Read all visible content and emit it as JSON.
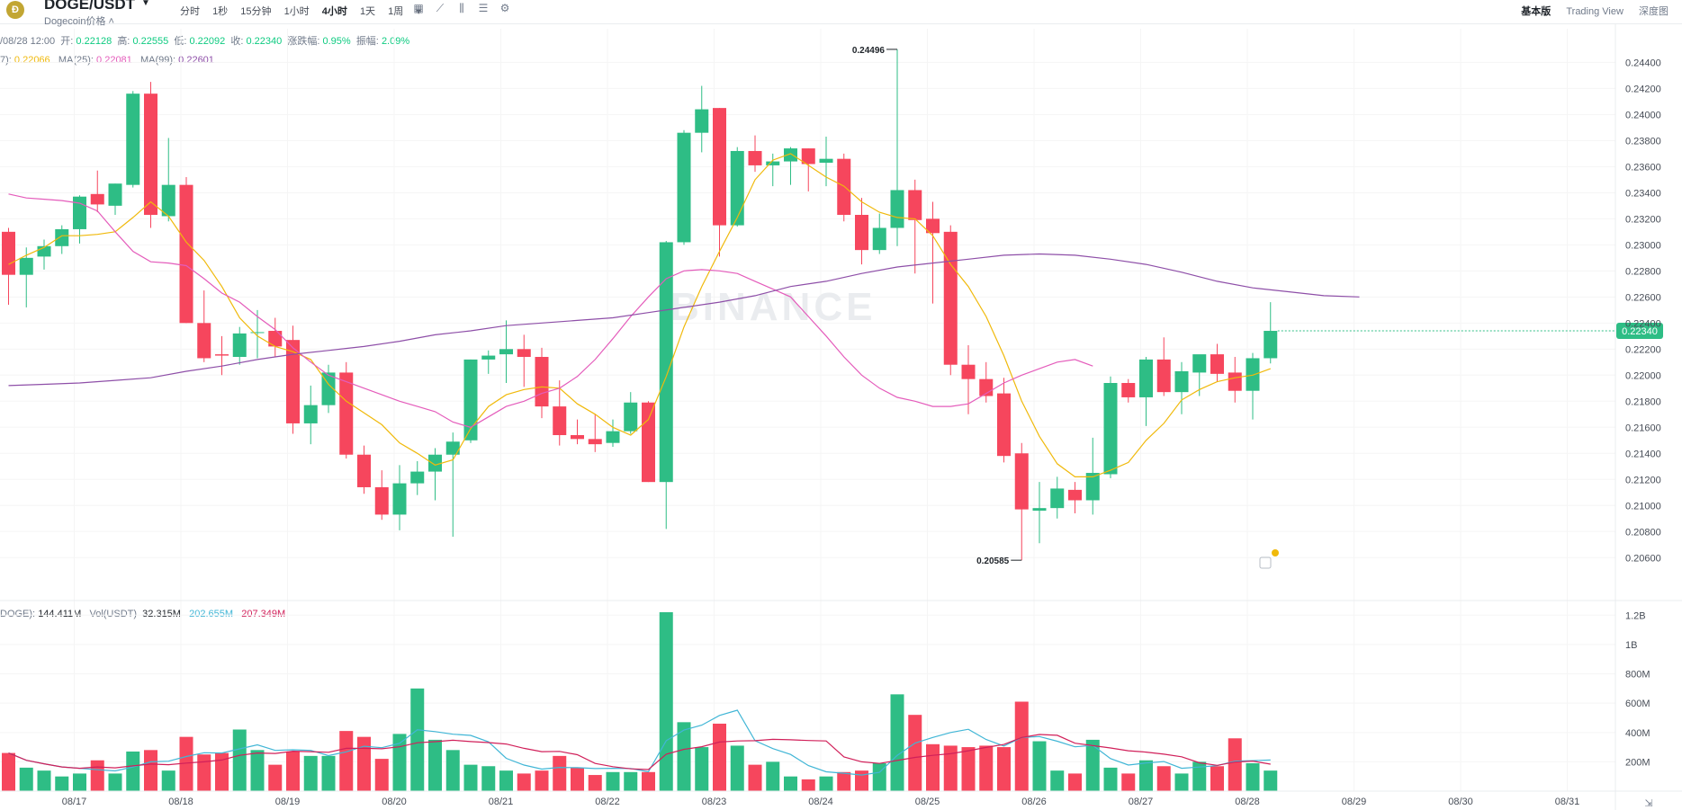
{
  "header": {
    "logo_text": "Ð",
    "pair": "DOGE/USDT",
    "subname": "Dogecoin价格 ˄",
    "intervals": [
      "分时",
      "1秒",
      "15分钟",
      "1小时",
      "4小时",
      "1天",
      "1周"
    ],
    "active_interval": "4小时",
    "views": [
      "基本版",
      "Trading View",
      "深度图"
    ],
    "active_view": "基本版"
  },
  "ohlc_legend": {
    "time": "/08/28 12:00",
    "open_label": "开:",
    "open": "0.22128",
    "high_label": "高:",
    "high": "0.22555",
    "low_label": "低:",
    "low": "0.22092",
    "close_label": "收:",
    "close": "0.22340",
    "change_label": "涨跌幅:",
    "change": "0.95%",
    "amp_label": "振幅:",
    "amp": "2.09%"
  },
  "ma_legend": {
    "ma7_label": "7):",
    "ma7": "0.22066",
    "ma25_label": "MA(25):",
    "ma25": "0.22081",
    "ma99_label": "MA(99):",
    "ma99": "0.22601"
  },
  "vol_legend": {
    "doge_label": "DOGE):",
    "doge": "144.411M",
    "usdt_label": "Vol(USDT)",
    "usdt": "32.315M",
    "ma1": "202.655M",
    "ma2": "207.349M"
  },
  "colors": {
    "up": "#2ebd85",
    "down": "#f6465d",
    "ma7": "#f0b90b",
    "ma25": "#e45cbb",
    "ma99": "#8e4fa8",
    "vol_ma1": "#41b6d6",
    "vol_ma2": "#d1205a",
    "last_price_bg": "#2ebd85"
  },
  "watermark": "BINANCE",
  "chart_data": {
    "type": "candlestick",
    "interval": "4h",
    "price_axis": {
      "ticks": [
        "0.24400",
        "0.24200",
        "0.24000",
        "0.23800",
        "0.23600",
        "0.23400",
        "0.23200",
        "0.23000",
        "0.22800",
        "0.22600",
        "0.22400",
        "0.22200",
        "0.22000",
        "0.21800",
        "0.21600",
        "0.21400",
        "0.21200",
        "0.21000",
        "0.20800",
        "0.20600"
      ],
      "range": [
        0.2045,
        0.2452
      ]
    },
    "volume_axis": {
      "ticks": [
        "1.2B",
        "1B",
        "800M",
        "600M",
        "400M",
        "200M"
      ],
      "range": [
        0,
        1220
      ]
    },
    "x_ticks": [
      "08/17",
      "08/18",
      "08/19",
      "08/20",
      "08/21",
      "08/22",
      "08/23",
      "08/24",
      "08/25",
      "08/26",
      "08/27",
      "08/28",
      "08/29",
      "08/30",
      "08/31"
    ],
    "last_price": "0.22340",
    "max_label": "0.24496",
    "min_label": "0.20585",
    "candles": [
      {
        "o": 0.231,
        "h": 0.2313,
        "l": 0.2254,
        "c": 0.2277,
        "v": 260
      },
      {
        "o": 0.2277,
        "h": 0.2298,
        "l": 0.2252,
        "c": 0.229,
        "v": 160
      },
      {
        "o": 0.2291,
        "h": 0.2304,
        "l": 0.2281,
        "c": 0.2299,
        "v": 140
      },
      {
        "o": 0.2299,
        "h": 0.2315,
        "l": 0.2293,
        "c": 0.2312,
        "v": 100
      },
      {
        "o": 0.2312,
        "h": 0.2338,
        "l": 0.2301,
        "c": 0.2337,
        "v": 120
      },
      {
        "o": 0.2339,
        "h": 0.2357,
        "l": 0.2325,
        "c": 0.2331,
        "v": 210
      },
      {
        "o": 0.233,
        "h": 0.2347,
        "l": 0.2323,
        "c": 0.2347,
        "v": 120
      },
      {
        "o": 0.2346,
        "h": 0.2418,
        "l": 0.2344,
        "c": 0.2416,
        "v": 270
      },
      {
        "o": 0.2416,
        "h": 0.2425,
        "l": 0.2313,
        "c": 0.2323,
        "v": 280
      },
      {
        "o": 0.2322,
        "h": 0.2382,
        "l": 0.2318,
        "c": 0.2346,
        "v": 140
      },
      {
        "o": 0.2346,
        "h": 0.2352,
        "l": 0.224,
        "c": 0.224,
        "v": 370
      },
      {
        "o": 0.224,
        "h": 0.2265,
        "l": 0.221,
        "c": 0.2213,
        "v": 250
      },
      {
        "o": 0.2216,
        "h": 0.223,
        "l": 0.22,
        "c": 0.2215,
        "v": 260
      },
      {
        "o": 0.2214,
        "h": 0.2237,
        "l": 0.2208,
        "c": 0.2232,
        "v": 420
      },
      {
        "o": 0.2233,
        "h": 0.225,
        "l": 0.2213,
        "c": 0.2233,
        "v": 280
      },
      {
        "o": 0.2234,
        "h": 0.2244,
        "l": 0.2214,
        "c": 0.2222,
        "v": 180
      },
      {
        "o": 0.2227,
        "h": 0.2238,
        "l": 0.2155,
        "c": 0.2163,
        "v": 270
      },
      {
        "o": 0.2163,
        "h": 0.2192,
        "l": 0.2147,
        "c": 0.2177,
        "v": 240
      },
      {
        "o": 0.2177,
        "h": 0.2208,
        "l": 0.2171,
        "c": 0.2202,
        "v": 240
      },
      {
        "o": 0.2202,
        "h": 0.221,
        "l": 0.2136,
        "c": 0.2139,
        "v": 410
      },
      {
        "o": 0.2139,
        "h": 0.2146,
        "l": 0.2109,
        "c": 0.2114,
        "v": 370
      },
      {
        "o": 0.2114,
        "h": 0.2127,
        "l": 0.2089,
        "c": 0.2093,
        "v": 220
      },
      {
        "o": 0.2093,
        "h": 0.2131,
        "l": 0.2081,
        "c": 0.2117,
        "v": 390
      },
      {
        "o": 0.2117,
        "h": 0.2134,
        "l": 0.2108,
        "c": 0.2126,
        "v": 700
      },
      {
        "o": 0.2126,
        "h": 0.2144,
        "l": 0.2104,
        "c": 0.2139,
        "v": 350
      },
      {
        "o": 0.2139,
        "h": 0.2156,
        "l": 0.2076,
        "c": 0.2149,
        "v": 280
      },
      {
        "o": 0.215,
        "h": 0.2212,
        "l": 0.2148,
        "c": 0.2212,
        "v": 180
      },
      {
        "o": 0.2212,
        "h": 0.2219,
        "l": 0.2201,
        "c": 0.2215,
        "v": 170
      },
      {
        "o": 0.2216,
        "h": 0.2242,
        "l": 0.2194,
        "c": 0.222,
        "v": 140
      },
      {
        "o": 0.222,
        "h": 0.2231,
        "l": 0.2191,
        "c": 0.2214,
        "v": 120
      },
      {
        "o": 0.2214,
        "h": 0.2221,
        "l": 0.2167,
        "c": 0.2176,
        "v": 140
      },
      {
        "o": 0.2176,
        "h": 0.2196,
        "l": 0.2146,
        "c": 0.2154,
        "v": 240
      },
      {
        "o": 0.2154,
        "h": 0.2166,
        "l": 0.2147,
        "c": 0.2151,
        "v": 160
      },
      {
        "o": 0.2151,
        "h": 0.217,
        "l": 0.2141,
        "c": 0.2147,
        "v": 110
      },
      {
        "o": 0.2148,
        "h": 0.2166,
        "l": 0.2145,
        "c": 0.2157,
        "v": 130
      },
      {
        "o": 0.2157,
        "h": 0.2187,
        "l": 0.2155,
        "c": 0.2179,
        "v": 130
      },
      {
        "o": 0.2179,
        "h": 0.218,
        "l": 0.2118,
        "c": 0.2118,
        "v": 130
      },
      {
        "o": 0.2118,
        "h": 0.2303,
        "l": 0.2082,
        "c": 0.2302,
        "v": 1220
      },
      {
        "o": 0.2302,
        "h": 0.2388,
        "l": 0.23,
        "c": 0.2386,
        "v": 470
      },
      {
        "o": 0.2386,
        "h": 0.2422,
        "l": 0.2371,
        "c": 0.2404,
        "v": 300
      },
      {
        "o": 0.2405,
        "h": 0.2405,
        "l": 0.2291,
        "c": 0.2315,
        "v": 460
      },
      {
        "o": 0.2315,
        "h": 0.2375,
        "l": 0.2314,
        "c": 0.2372,
        "v": 310
      },
      {
        "o": 0.2372,
        "h": 0.2384,
        "l": 0.2356,
        "c": 0.2361,
        "v": 180
      },
      {
        "o": 0.2361,
        "h": 0.237,
        "l": 0.2345,
        "c": 0.2364,
        "v": 200
      },
      {
        "o": 0.2364,
        "h": 0.2375,
        "l": 0.2346,
        "c": 0.2374,
        "v": 100
      },
      {
        "o": 0.2374,
        "h": 0.2374,
        "l": 0.2341,
        "c": 0.2362,
        "v": 80
      },
      {
        "o": 0.2363,
        "h": 0.2383,
        "l": 0.2345,
        "c": 0.2366,
        "v": 100
      },
      {
        "o": 0.2366,
        "h": 0.237,
        "l": 0.2318,
        "c": 0.2323,
        "v": 130
      },
      {
        "o": 0.2323,
        "h": 0.2336,
        "l": 0.2285,
        "c": 0.2296,
        "v": 140
      },
      {
        "o": 0.2296,
        "h": 0.2324,
        "l": 0.2293,
        "c": 0.2313,
        "v": 190
      },
      {
        "o": 0.2313,
        "h": 0.245,
        "l": 0.2299,
        "c": 0.2342,
        "v": 660
      },
      {
        "o": 0.2342,
        "h": 0.235,
        "l": 0.2278,
        "c": 0.2319,
        "v": 520
      },
      {
        "o": 0.232,
        "h": 0.2333,
        "l": 0.2255,
        "c": 0.2309,
        "v": 320
      },
      {
        "o": 0.231,
        "h": 0.2315,
        "l": 0.22,
        "c": 0.2208,
        "v": 310
      },
      {
        "o": 0.2208,
        "h": 0.2223,
        "l": 0.217,
        "c": 0.2197,
        "v": 300
      },
      {
        "o": 0.2197,
        "h": 0.221,
        "l": 0.2179,
        "c": 0.2184,
        "v": 310
      },
      {
        "o": 0.2186,
        "h": 0.2198,
        "l": 0.2133,
        "c": 0.2138,
        "v": 300
      },
      {
        "o": 0.214,
        "h": 0.2148,
        "l": 0.2058,
        "c": 0.2097,
        "v": 610
      },
      {
        "o": 0.2096,
        "h": 0.2118,
        "l": 0.2071,
        "c": 0.2098,
        "v": 340
      },
      {
        "o": 0.2098,
        "h": 0.2122,
        "l": 0.209,
        "c": 0.2113,
        "v": 140
      },
      {
        "o": 0.2112,
        "h": 0.2118,
        "l": 0.2094,
        "c": 0.2104,
        "v": 120
      },
      {
        "o": 0.2104,
        "h": 0.2152,
        "l": 0.2093,
        "c": 0.2125,
        "v": 350
      },
      {
        "o": 0.2124,
        "h": 0.2199,
        "l": 0.2121,
        "c": 0.2194,
        "v": 160
      },
      {
        "o": 0.2194,
        "h": 0.2197,
        "l": 0.2179,
        "c": 0.2183,
        "v": 120
      },
      {
        "o": 0.2183,
        "h": 0.2214,
        "l": 0.2161,
        "c": 0.2212,
        "v": 210
      },
      {
        "o": 0.2212,
        "h": 0.2229,
        "l": 0.2184,
        "c": 0.2187,
        "v": 170
      },
      {
        "o": 0.2187,
        "h": 0.221,
        "l": 0.217,
        "c": 0.2203,
        "v": 120
      },
      {
        "o": 0.2202,
        "h": 0.2215,
        "l": 0.2184,
        "c": 0.2216,
        "v": 200
      },
      {
        "o": 0.2216,
        "h": 0.2224,
        "l": 0.2195,
        "c": 0.2201,
        "v": 170
      },
      {
        "o": 0.2202,
        "h": 0.2214,
        "l": 0.2179,
        "c": 0.2188,
        "v": 360
      },
      {
        "o": 0.2188,
        "h": 0.2217,
        "l": 0.2166,
        "c": 0.2213,
        "v": 190
      },
      {
        "o": 0.2213,
        "h": 0.2256,
        "l": 0.2209,
        "c": 0.2234,
        "v": 140
      }
    ],
    "ma7": [
      0.2285,
      0.2292,
      0.2298,
      0.2307,
      0.2307,
      0.2308,
      0.231,
      0.2321,
      0.2333,
      0.2322,
      0.2302,
      0.2288,
      0.2268,
      0.2244,
      0.223,
      0.2222,
      0.2218,
      0.2212,
      0.2193,
      0.218,
      0.2171,
      0.2162,
      0.2148,
      0.214,
      0.2131,
      0.2135,
      0.2159,
      0.2176,
      0.2185,
      0.2189,
      0.2191,
      0.219,
      0.2178,
      0.217,
      0.216,
      0.2154,
      0.2166,
      0.2199,
      0.2237,
      0.2268,
      0.2295,
      0.2321,
      0.235,
      0.2365,
      0.237,
      0.2361,
      0.2352,
      0.2345,
      0.2333,
      0.2325,
      0.2321,
      0.232,
      0.2307,
      0.2285,
      0.2268,
      0.2245,
      0.2215,
      0.218,
      0.2153,
      0.2132,
      0.2122,
      0.2122,
      0.2127,
      0.2133,
      0.215,
      0.2163,
      0.2181,
      0.2189,
      0.2195,
      0.2198,
      0.22,
      0.2205
    ],
    "ma25": [
      0.2339,
      0.2336,
      0.2335,
      0.2334,
      0.2332,
      0.2326,
      0.231,
      0.2295,
      0.2287,
      0.2286,
      0.2284,
      0.2274,
      0.2263,
      0.2256,
      0.2245,
      0.2235,
      0.2221,
      0.221,
      0.22,
      0.2195,
      0.219,
      0.2185,
      0.218,
      0.2176,
      0.2172,
      0.2164,
      0.216,
      0.2168,
      0.2176,
      0.218,
      0.2186,
      0.219,
      0.2199,
      0.2212,
      0.2228,
      0.2245,
      0.226,
      0.2274,
      0.228,
      0.2281,
      0.228,
      0.2278,
      0.2272,
      0.2266,
      0.226,
      0.2245,
      0.223,
      0.2214,
      0.22,
      0.219,
      0.2183,
      0.218,
      0.2176,
      0.2176,
      0.2178,
      0.2186,
      0.2194,
      0.22,
      0.2205,
      0.221,
      0.2212,
      0.2207
    ],
    "ma99": [
      0.2192,
      0.2193,
      0.2194,
      0.2196,
      0.2198,
      0.2203,
      0.2207,
      0.2212,
      0.2216,
      0.2219,
      0.2222,
      0.2226,
      0.2231,
      0.2234,
      0.2238,
      0.224,
      0.2242,
      0.2244,
      0.2248,
      0.2252,
      0.2256,
      0.2261,
      0.2268,
      0.2272,
      0.2278,
      0.2283,
      0.2286,
      0.2289,
      0.2292,
      0.2293,
      0.2292,
      0.2289,
      0.2285,
      0.2279,
      0.2272,
      0.2267,
      0.2264,
      0.2261,
      0.226
    ]
  }
}
